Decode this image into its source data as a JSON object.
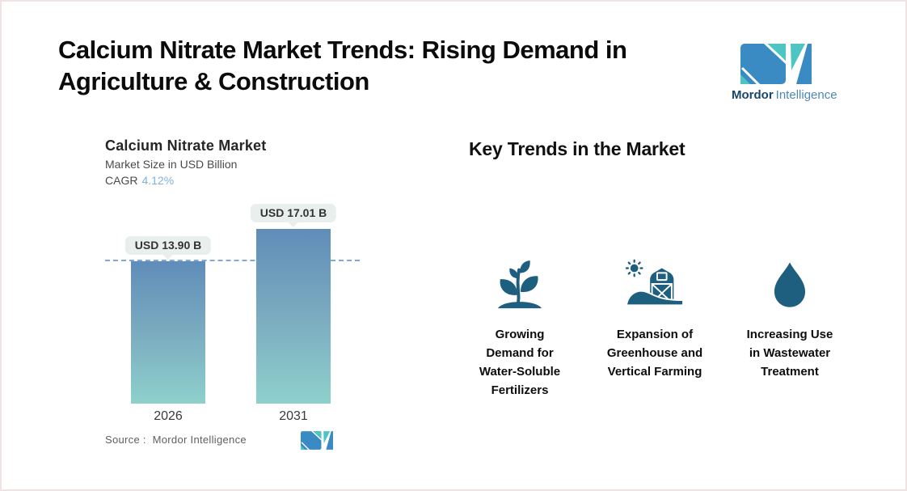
{
  "page_title": "Calcium Nitrate Market Trends: Rising Demand in\nAgriculture & Construction",
  "brand": {
    "name_bold": "Mordor",
    "name_light": "Intelligence"
  },
  "chart": {
    "title": "Calcium Nitrate Market",
    "subtitle": "Market Size in USD Billion",
    "cagr_label": "CAGR",
    "cagr_value": "4.12%",
    "source_text": "Source :  Mordor Intelligence"
  },
  "chart_data": {
    "type": "bar",
    "title": "Calcium Nitrate Market",
    "ylabel": "Market Size in USD Billion",
    "unit": "USD Billion",
    "cagr_percent": 4.12,
    "categories": [
      "2026",
      "2031"
    ],
    "values": [
      13.9,
      17.01
    ],
    "value_labels": [
      "USD 13.90 B",
      "USD 17.01 B"
    ],
    "ylim": [
      0,
      17.01
    ],
    "reference_line": 13.9,
    "grid": false,
    "legend": false
  },
  "trends": {
    "heading": "Key Trends in the Market",
    "items": [
      {
        "icon": "plant-sprout-icon",
        "label": "Growing\nDemand for\nWater-Soluble\nFertilizers"
      },
      {
        "icon": "barn-sun-icon",
        "label": "Expansion of\nGreenhouse and\nVertical Farming"
      },
      {
        "icon": "water-drop-icon",
        "label": "Increasing Use\nin Wastewater\nTreatment"
      }
    ]
  },
  "colors": {
    "brand_blue": "#3a8ac4",
    "brand_teal": "#4ec5c3",
    "brand_dark": "#17466b",
    "brand_mid": "#4e89b5",
    "icon_fill": "#1e5e7f",
    "bar_top": "#5f8db9",
    "bar_bottom": "#8ed0cc",
    "dashed_line": "#7ea9d8",
    "cagr_value": "#84b1d6",
    "pill_bg": "#e9efec"
  }
}
